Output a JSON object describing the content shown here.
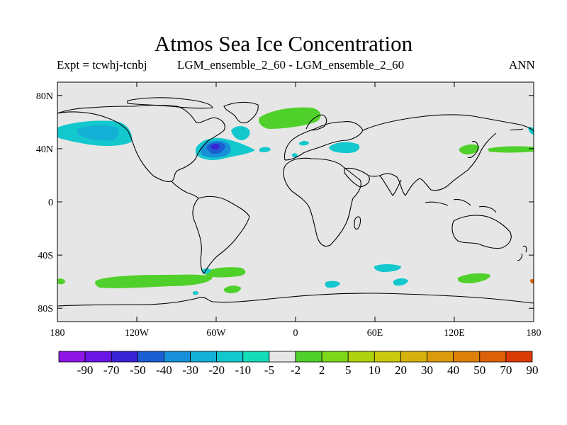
{
  "title": "Atmos Sea Ice Concentration",
  "subtitle_left": "Expt = tcwhj-tcnbj",
  "subtitle_center": "LGM_ensemble_2_60 - LGM_ensemble_2_60",
  "subtitle_right": "ANN",
  "map": {
    "lon_range": [
      -180,
      180
    ],
    "lat_range": [
      -90,
      90
    ],
    "x_ticks": [
      {
        "lon": -180,
        "label": "180"
      },
      {
        "lon": -120,
        "label": "120W"
      },
      {
        "lon": -60,
        "label": "60W"
      },
      {
        "lon": 0,
        "label": "0"
      },
      {
        "lon": 60,
        "label": "60E"
      },
      {
        "lon": 120,
        "label": "120E"
      },
      {
        "lon": 180,
        "label": "180"
      }
    ],
    "y_ticks": [
      {
        "lat": 80,
        "label": "80N"
      },
      {
        "lat": 40,
        "label": "40N"
      },
      {
        "lat": 0,
        "label": "0"
      },
      {
        "lat": -40,
        "label": "40S"
      },
      {
        "lat": -80,
        "label": "80S"
      }
    ],
    "background_color": "#e6e6e6"
  },
  "colorbar": {
    "colors": [
      "#8d16e6",
      "#6a16e6",
      "#3a22d6",
      "#1a5ed2",
      "#1790d9",
      "#14b0d6",
      "#13c8cd",
      "#15dcb8",
      "#e6e6e6",
      "#50d02a",
      "#7ed619",
      "#aed20e",
      "#cbc90d",
      "#d6b00c",
      "#d99a0b",
      "#dc800a",
      "#dc6008",
      "#da3a06"
    ],
    "labels": [
      "-90",
      "-70",
      "-50",
      "-40",
      "-30",
      "-20",
      "-10",
      "-5",
      "-2",
      "2",
      "5",
      "10",
      "20",
      "30",
      "40",
      "50",
      "70",
      "90"
    ]
  }
}
